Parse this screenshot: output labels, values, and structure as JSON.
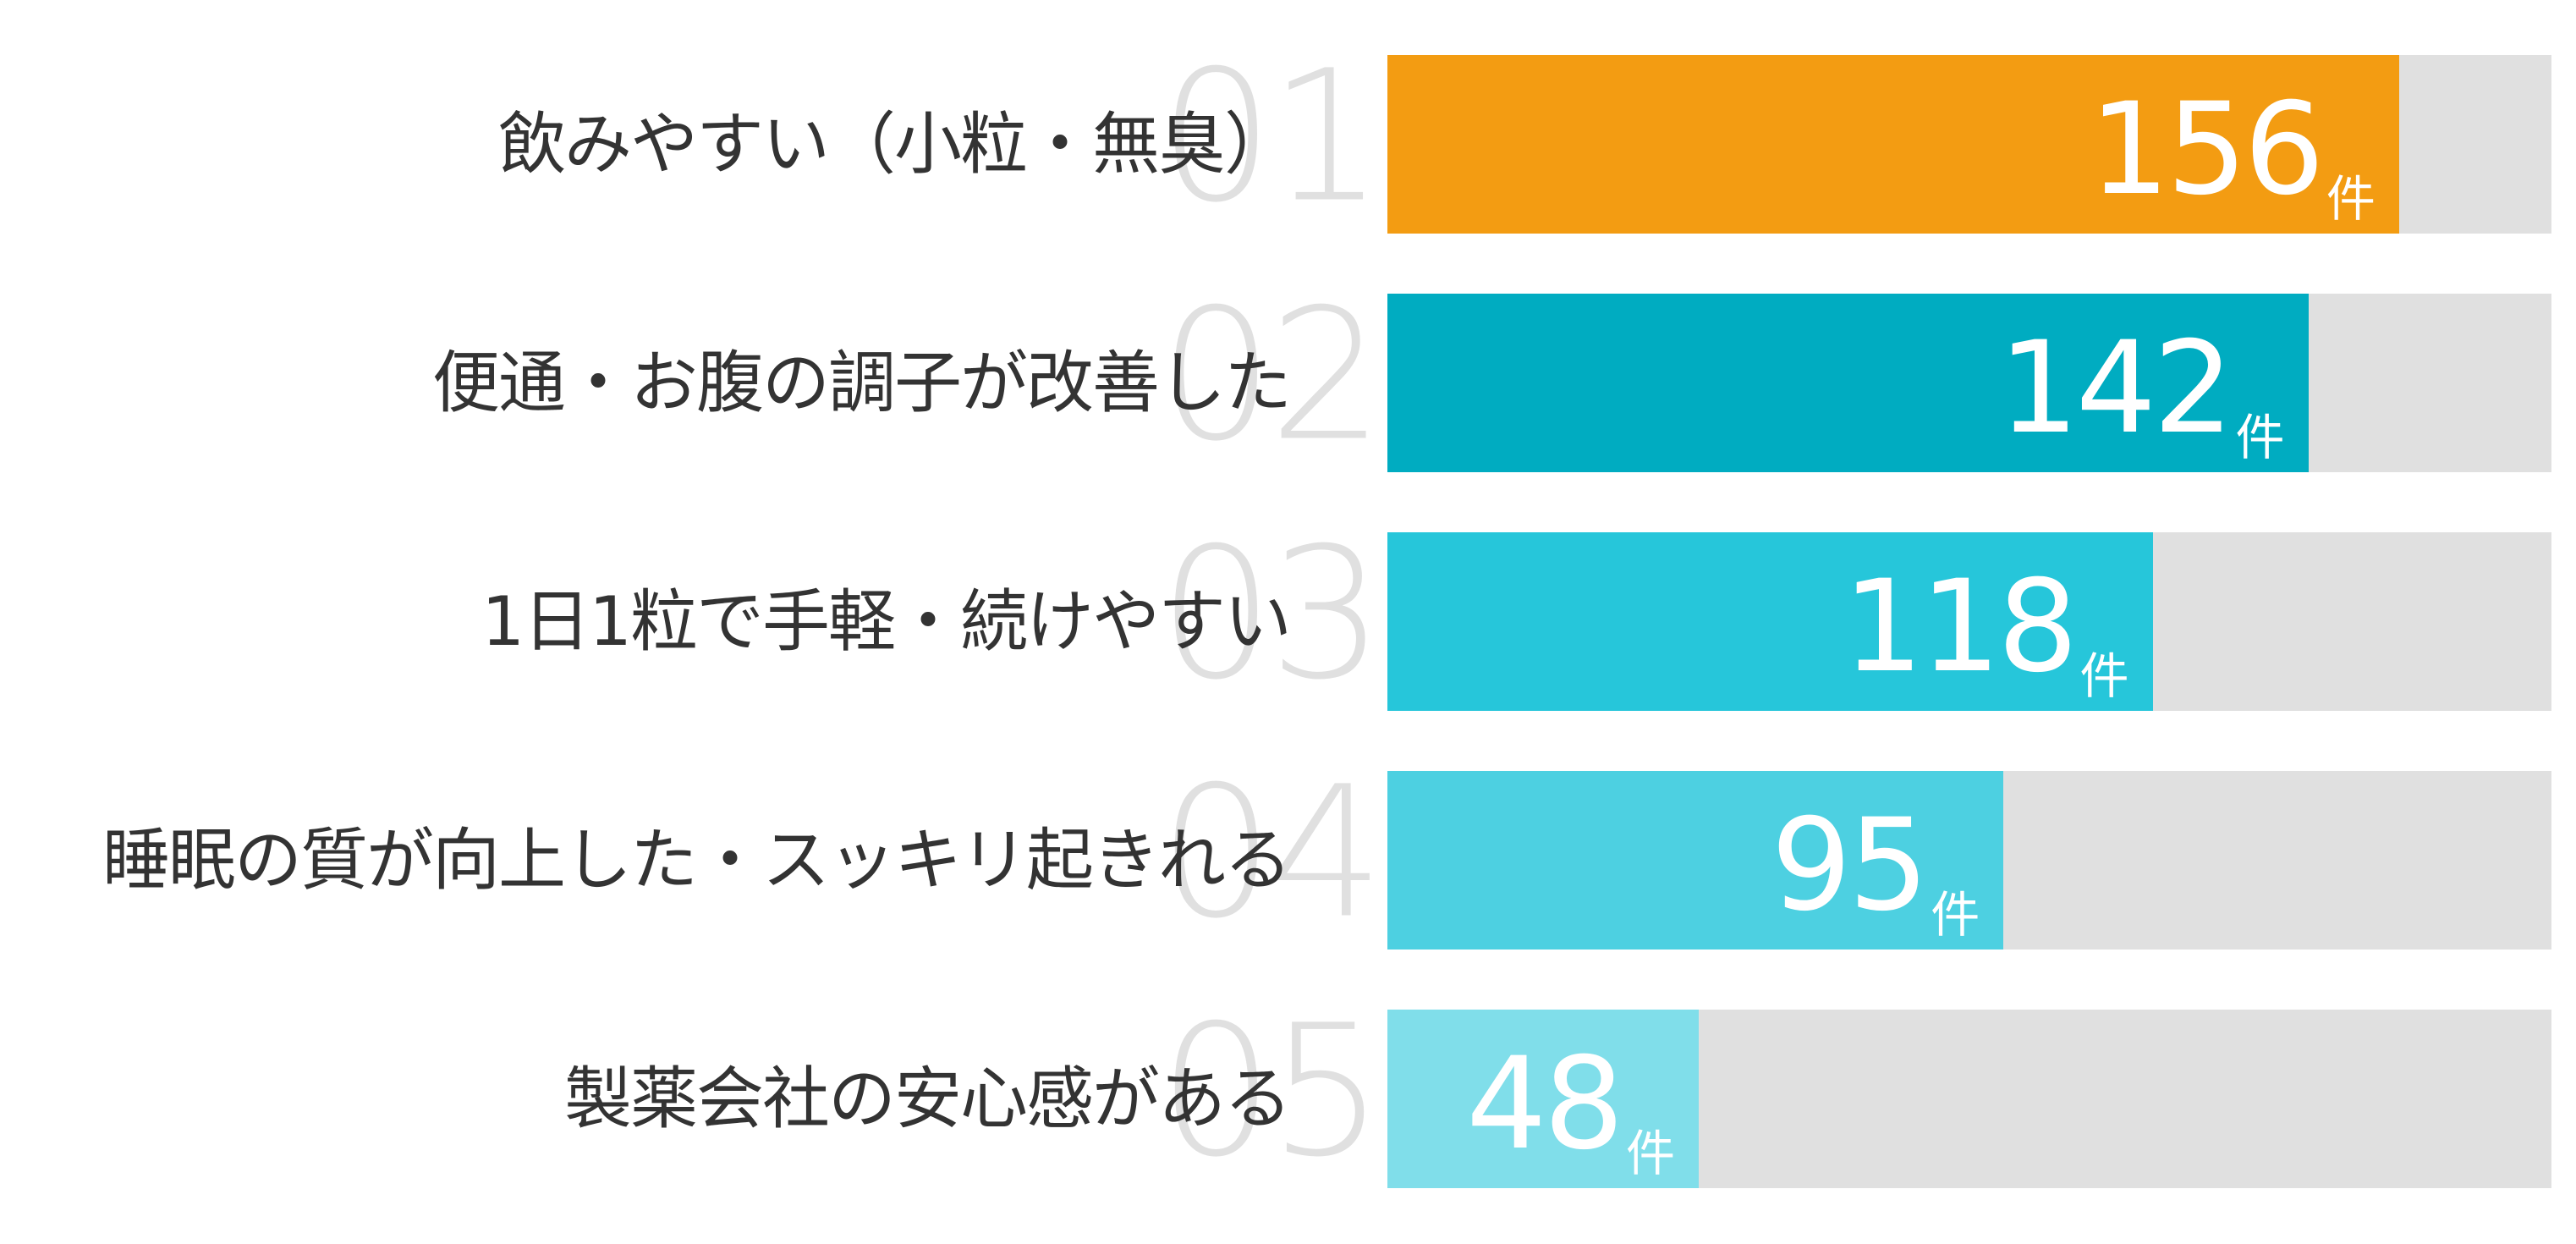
{
  "chart_data": {
    "type": "bar",
    "orientation": "horizontal",
    "title": "",
    "xlabel": "",
    "ylabel": "",
    "unit": "件",
    "xlim": [
      0,
      179.5
    ],
    "grid": false,
    "legend": null,
    "categories": [
      "飲みやすい（小粒・無臭）",
      "便通・お腹の調子が改善した",
      "1日1粒で手軽・続けやすい",
      "睡眠の質が向上した・スッキリ起きれる",
      "製薬会社の安心感がある"
    ],
    "ranks": [
      "01",
      "02",
      "03",
      "04",
      "05"
    ],
    "values": [
      156,
      142,
      118,
      95,
      48
    ],
    "colors": [
      "#f39c12",
      "#00acc1",
      "#26c6da",
      "#4dd0e1",
      "#80deea"
    ],
    "track_color": "#e0e0e0"
  },
  "rows": [
    {
      "rank": "01",
      "label": "飲みやすい（小粒・無臭）",
      "value": "156",
      "unit": "件",
      "color": "#f39c12",
      "pct": 86.9
    },
    {
      "rank": "02",
      "label": "便通・お腹の調子が改善した",
      "value": "142",
      "unit": "件",
      "color": "#00acc1",
      "pct": 79.1
    },
    {
      "rank": "03",
      "label": "1日1粒で手軽・続けやすい",
      "value": "118",
      "unit": "件",
      "color": "#26c6da",
      "pct": 65.7
    },
    {
      "rank": "04",
      "label": "睡眠の質が向上した・スッキリ起きれる",
      "value": "95",
      "unit": "件",
      "color": "#4dd0e1",
      "pct": 52.9
    },
    {
      "rank": "05",
      "label": "製薬会社の安心感がある",
      "value": "48",
      "unit": "件",
      "color": "#80deea",
      "pct": 26.8
    }
  ]
}
